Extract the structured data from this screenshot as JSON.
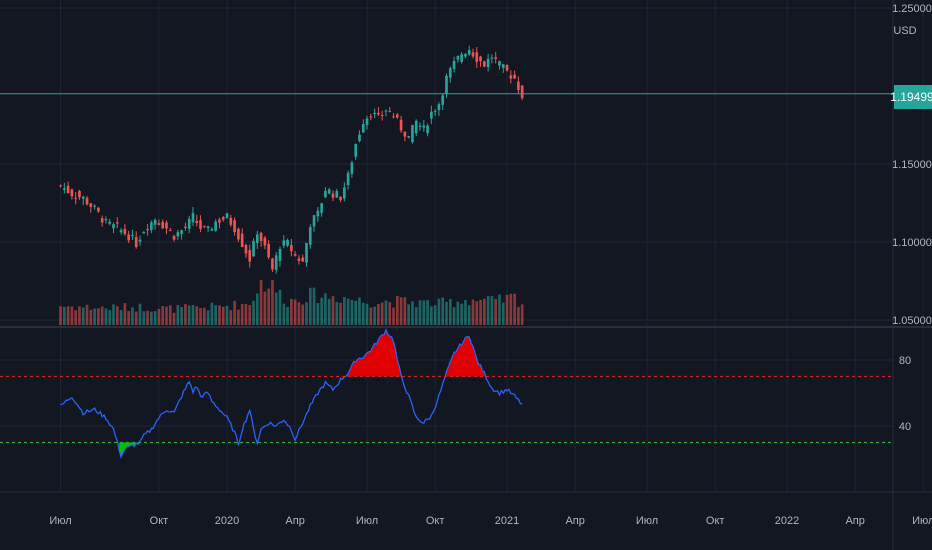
{
  "colors": {
    "background": "#131722",
    "grid": "#1f2433",
    "up": "#26a69a",
    "down": "#ef5350",
    "current_price": "#26a69a",
    "rsi_line": "#2962ff",
    "overbought_fill": "#e00000",
    "oversold_fill": "#00c000",
    "overbought_level": "#c62828",
    "oversold_level": "#1faa3a"
  },
  "header": {
    "currency": "USD",
    "current_price_label": "1.19499",
    "current_price": 1.195
  },
  "chart_data": [
    {
      "type": "candlestick",
      "title": "",
      "price_ticks": [
        {
          "value": 1.25,
          "label": "1.25000"
        },
        {
          "value": 1.15,
          "label": "1.15000"
        },
        {
          "value": 1.1,
          "label": "1.10000"
        },
        {
          "value": 1.05,
          "label": "1.05000"
        }
      ],
      "ylim": [
        1.05,
        1.25
      ],
      "candle_close_path": [
        [
          0,
          1.136
        ],
        [
          3,
          1.131
        ],
        [
          6,
          1.128
        ],
        [
          9,
          1.121
        ],
        [
          12,
          1.112
        ],
        [
          15,
          1.109
        ],
        [
          18,
          1.104
        ],
        [
          20,
          1.099
        ],
        [
          22,
          1.108
        ],
        [
          25,
          1.115
        ],
        [
          28,
          1.109
        ],
        [
          30,
          1.104
        ],
        [
          33,
          1.109
        ],
        [
          35,
          1.116
        ],
        [
          37,
          1.109
        ],
        [
          39,
          1.107
        ],
        [
          41,
          1.113
        ],
        [
          44,
          1.116
        ],
        [
          46,
          1.109
        ],
        [
          48,
          1.099
        ],
        [
          50,
          1.089
        ],
        [
          52,
          1.107
        ],
        [
          54,
          1.096
        ],
        [
          56,
          1.082
        ],
        [
          58,
          1.098
        ],
        [
          60,
          1.099
        ],
        [
          62,
          1.091
        ],
        [
          64,
          1.087
        ],
        [
          66,
          1.112
        ],
        [
          68,
          1.118
        ],
        [
          70,
          1.134
        ],
        [
          72,
          1.131
        ],
        [
          74,
          1.129
        ],
        [
          76,
          1.142
        ],
        [
          78,
          1.163
        ],
        [
          80,
          1.178
        ],
        [
          82,
          1.183
        ],
        [
          84,
          1.179
        ],
        [
          86,
          1.185
        ],
        [
          88,
          1.181
        ],
        [
          90,
          1.173
        ],
        [
          92,
          1.167
        ],
        [
          94,
          1.177
        ],
        [
          96,
          1.172
        ],
        [
          98,
          1.183
        ],
        [
          100,
          1.189
        ],
        [
          102,
          1.205
        ],
        [
          104,
          1.214
        ],
        [
          106,
          1.221
        ],
        [
          108,
          1.224
        ],
        [
          110,
          1.218
        ],
        [
          112,
          1.214
        ],
        [
          114,
          1.219
        ],
        [
          116,
          1.213
        ],
        [
          118,
          1.209
        ],
        [
          120,
          1.205
        ],
        [
          122,
          1.194
        ]
      ],
      "volume_relative_path": [
        [
          0,
          0.45
        ],
        [
          10,
          0.4
        ],
        [
          20,
          0.42
        ],
        [
          30,
          0.38
        ],
        [
          40,
          0.42
        ],
        [
          50,
          0.5
        ],
        [
          53,
          1.0
        ],
        [
          56,
          0.9
        ],
        [
          60,
          0.55
        ],
        [
          66,
          0.7
        ],
        [
          75,
          0.65
        ],
        [
          80,
          0.55
        ],
        [
          90,
          0.55
        ],
        [
          100,
          0.5
        ],
        [
          108,
          0.6
        ],
        [
          115,
          0.55
        ],
        [
          120,
          0.65
        ],
        [
          122,
          0.5
        ]
      ]
    },
    {
      "type": "line",
      "title": "",
      "series": [
        {
          "values_path": [
            [
              0,
              52
            ],
            [
              3,
              58
            ],
            [
              6,
              48
            ],
            [
              9,
              50
            ],
            [
              12,
              45
            ],
            [
              14,
              38
            ],
            [
              15,
              30
            ],
            [
              16,
              22
            ],
            [
              17,
              26
            ],
            [
              19,
              28
            ],
            [
              21,
              30
            ],
            [
              22,
              34
            ],
            [
              24,
              38
            ],
            [
              26,
              45
            ],
            [
              28,
              50
            ],
            [
              30,
              48
            ],
            [
              32,
              58
            ],
            [
              34,
              67
            ],
            [
              35,
              61
            ],
            [
              36,
              64
            ],
            [
              37,
              58
            ],
            [
              39,
              60
            ],
            [
              40,
              55
            ],
            [
              42,
              50
            ],
            [
              44,
              45
            ],
            [
              46,
              36
            ],
            [
              47,
              29
            ],
            [
              48,
              38
            ],
            [
              50,
              50
            ],
            [
              51,
              38
            ],
            [
              52,
              30
            ],
            [
              53,
              38
            ],
            [
              55,
              42
            ],
            [
              57,
              40
            ],
            [
              59,
              44
            ],
            [
              61,
              38
            ],
            [
              62,
              32
            ],
            [
              64,
              42
            ],
            [
              66,
              52
            ],
            [
              68,
              60
            ],
            [
              70,
              66
            ],
            [
              72,
              62
            ],
            [
              74,
              68
            ],
            [
              76,
              72
            ],
            [
              78,
              80
            ],
            [
              80,
              82
            ],
            [
              82,
              86
            ],
            [
              84,
              92
            ],
            [
              86,
              98
            ],
            [
              88,
              92
            ],
            [
              89,
              80
            ],
            [
              90,
              70
            ],
            [
              92,
              58
            ],
            [
              94,
              45
            ],
            [
              96,
              42
            ],
            [
              98,
              46
            ],
            [
              100,
              58
            ],
            [
              102,
              72
            ],
            [
              104,
              84
            ],
            [
              106,
              90
            ],
            [
              108,
              95
            ],
            [
              109,
              88
            ],
            [
              110,
              80
            ],
            [
              112,
              72
            ],
            [
              114,
              63
            ],
            [
              116,
              60
            ],
            [
              118,
              62
            ],
            [
              120,
              58
            ],
            [
              122,
              53
            ]
          ]
        }
      ],
      "ylim": [
        0,
        100
      ],
      "yticks": [
        {
          "value": 80,
          "label": "80"
        },
        {
          "value": 40,
          "label": "40"
        }
      ],
      "overbought": 70,
      "oversold": 30
    }
  ],
  "time_axis": {
    "bar_range": [
      -16,
      220
    ],
    "ticks": [
      {
        "bar": 0,
        "label": "Июл"
      },
      {
        "bar": 26,
        "label": "Окт"
      },
      {
        "bar": 44,
        "label": "2020"
      },
      {
        "bar": 62,
        "label": "Апр"
      },
      {
        "bar": 81,
        "label": "Июл"
      },
      {
        "bar": 99,
        "label": "Окт"
      },
      {
        "bar": 118,
        "label": "2021"
      },
      {
        "bar": 136,
        "label": "Апр"
      },
      {
        "bar": 155,
        "label": "Июл"
      },
      {
        "bar": 173,
        "label": "Окт"
      },
      {
        "bar": 192,
        "label": "2022"
      },
      {
        "bar": 210,
        "label": "Апр"
      },
      {
        "bar": 228,
        "label": "Июл"
      }
    ]
  }
}
